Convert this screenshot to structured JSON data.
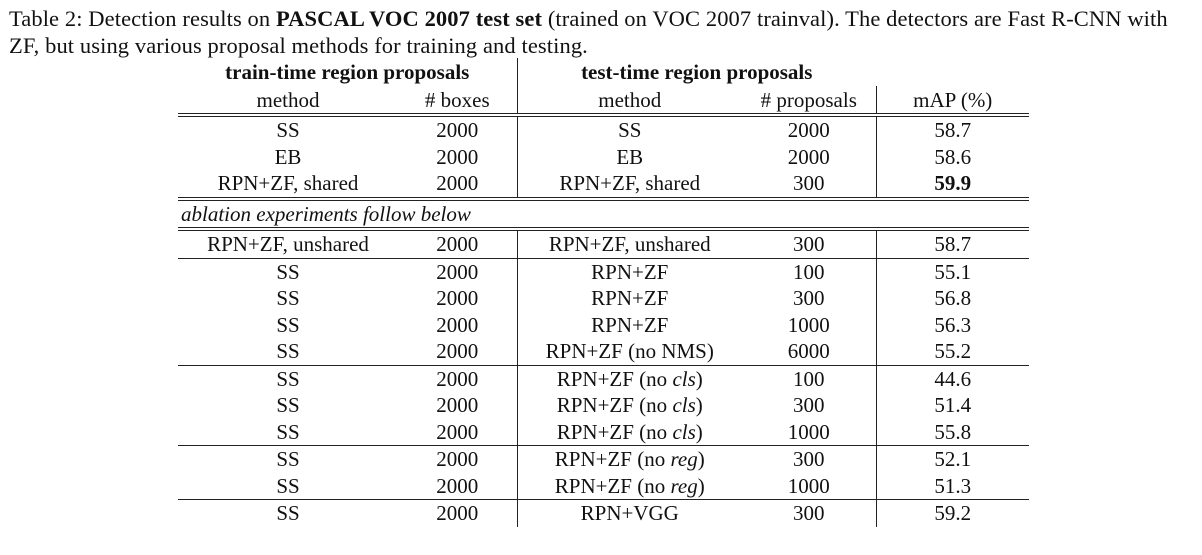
{
  "caption": {
    "prefix": "Table 2: Detection results on ",
    "bold": "PASCAL VOC 2007 test set",
    "suffix": " (trained on VOC 2007 trainval). The detectors are Fast R-CNN with ZF, but using various proposal methods for training and testing."
  },
  "header": {
    "group_train": "train-time region proposals",
    "group_test": "test-time region proposals",
    "col_train_method": "method",
    "col_train_boxes": "# boxes",
    "col_test_method": "method",
    "col_test_proposals": "# proposals",
    "col_map": "mAP (%)"
  },
  "main_rows": [
    {
      "train_method": "SS",
      "boxes": "2000",
      "test_method": "SS",
      "test_method_suffix": "",
      "proposals": "2000",
      "map": "58.7"
    },
    {
      "train_method": "EB",
      "boxes": "2000",
      "test_method": "EB",
      "test_method_suffix": "",
      "proposals": "2000",
      "map": "58.6"
    },
    {
      "train_method": "RPN+ZF, shared",
      "boxes": "2000",
      "test_method": "RPN+ZF, shared",
      "test_method_suffix": "",
      "proposals": "300",
      "map": "59.9"
    }
  ],
  "ablation_note": "ablation experiments follow below",
  "ablation_groups": [
    [
      {
        "train_method": "RPN+ZF, unshared",
        "boxes": "2000",
        "test_method": "RPN+ZF, unshared",
        "test_method_suffix": "",
        "proposals": "300",
        "map": "58.7"
      }
    ],
    [
      {
        "train_method": "SS",
        "boxes": "2000",
        "test_method": "RPN+ZF",
        "test_method_suffix": "",
        "proposals": "100",
        "map": "55.1"
      },
      {
        "train_method": "SS",
        "boxes": "2000",
        "test_method": "RPN+ZF",
        "test_method_suffix": "",
        "proposals": "300",
        "map": "56.8"
      },
      {
        "train_method": "SS",
        "boxes": "2000",
        "test_method": "RPN+ZF",
        "test_method_suffix": "",
        "proposals": "1000",
        "map": "56.3"
      },
      {
        "train_method": "SS",
        "boxes": "2000",
        "test_method": "RPN+ZF (no NMS)",
        "test_method_suffix": "",
        "proposals": "6000",
        "map": "55.2"
      }
    ],
    [
      {
        "train_method": "SS",
        "boxes": "2000",
        "test_method": "RPN+ZF (no ",
        "test_method_it": "cls",
        "test_method_suffix": ")",
        "proposals": "100",
        "map": "44.6"
      },
      {
        "train_method": "SS",
        "boxes": "2000",
        "test_method": "RPN+ZF (no ",
        "test_method_it": "cls",
        "test_method_suffix": ")",
        "proposals": "300",
        "map": "51.4"
      },
      {
        "train_method": "SS",
        "boxes": "2000",
        "test_method": "RPN+ZF (no ",
        "test_method_it": "cls",
        "test_method_suffix": ")",
        "proposals": "1000",
        "map": "55.8"
      }
    ],
    [
      {
        "train_method": "SS",
        "boxes": "2000",
        "test_method": "RPN+ZF (no ",
        "test_method_it": "reg",
        "test_method_suffix": ")",
        "proposals": "300",
        "map": "52.1"
      },
      {
        "train_method": "SS",
        "boxes": "2000",
        "test_method": "RPN+ZF (no ",
        "test_method_it": "reg",
        "test_method_suffix": ")",
        "proposals": "1000",
        "map": "51.3"
      }
    ],
    [
      {
        "train_method": "SS",
        "boxes": "2000",
        "test_method": "RPN+VGG",
        "test_method_suffix": "",
        "proposals": "300",
        "map": "59.2"
      }
    ]
  ]
}
